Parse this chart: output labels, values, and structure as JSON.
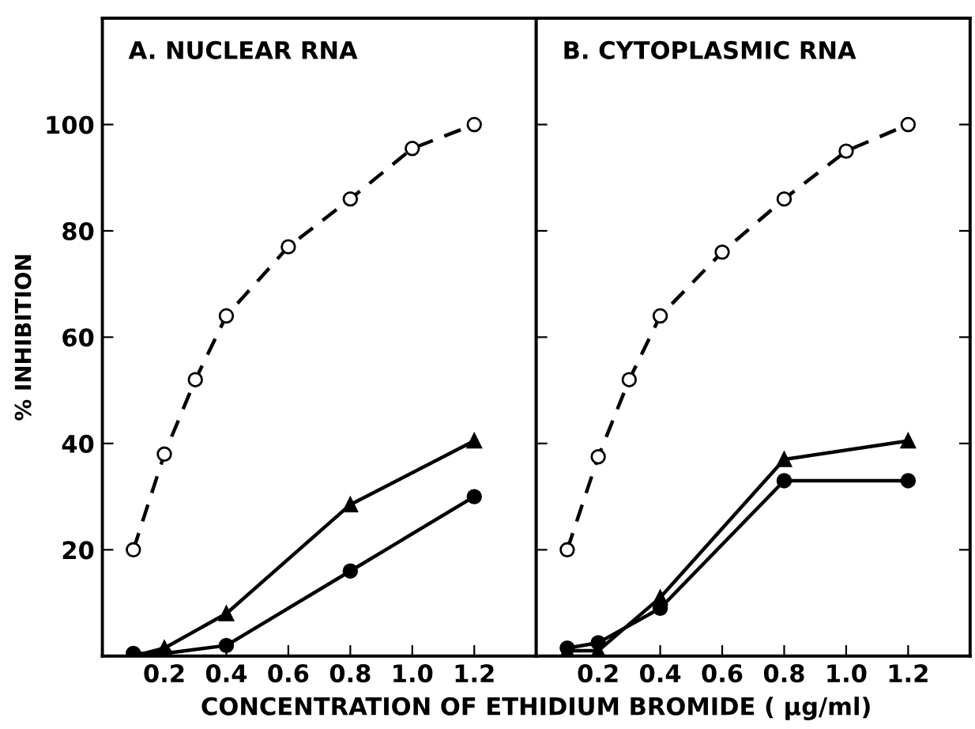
{
  "chart_data": [
    {
      "type": "line",
      "title": "A. NUCLEAR RNA",
      "ylabel": "% INHIBITION",
      "xlabel": "CONCENTRATION OF ETHIDIUM BROMIDE ( μg/ml)",
      "xlim": [
        0,
        1.4
      ],
      "ylim": [
        0,
        120
      ],
      "xticks": [
        0.2,
        0.4,
        0.6,
        0.8,
        {
          "value": 1.0,
          "label": "1.0"
        },
        1.2
      ],
      "yticks": [
        20,
        40,
        60,
        80,
        100
      ],
      "grid": false,
      "legend": false,
      "series": [
        {
          "color": "#000000",
          "marker": "circle",
          "line_style": "dashed",
          "x": [
            0.1,
            0.2,
            0.3,
            0.4,
            0.6,
            0.8,
            1.0,
            1.2
          ],
          "values": [
            20,
            38,
            52,
            64,
            77,
            86,
            95.5,
            100
          ]
        },
        {
          "color": "#000000",
          "marker": "triangle",
          "line_style": "solid",
          "x": [
            0.1,
            0.2,
            0.4,
            0.8,
            1.2
          ],
          "values": [
            0,
            1.5,
            8,
            28.5,
            40.5
          ]
        },
        {
          "color": "#000000",
          "marker": "circle",
          "line_style": "solid",
          "x": [
            0.1,
            0.2,
            0.4,
            0.8,
            1.2
          ],
          "values": [
            0.5,
            0.5,
            2,
            16,
            30
          ]
        }
      ]
    },
    {
      "type": "line",
      "title": "B. CYTOPLASMIC RNA",
      "xlim": [
        0,
        1.4
      ],
      "ylim": [
        0,
        120
      ],
      "xticks": [
        0.2,
        0.4,
        0.6,
        0.8,
        {
          "value": 1.0,
          "label": "1.0"
        },
        1.2
      ],
      "yticks": [
        20,
        40,
        60,
        80,
        100
      ],
      "tick_labels": "x",
      "grid": false,
      "legend": false,
      "series": [
        {
          "color": "#000000",
          "marker": "circle",
          "line_style": "dashed",
          "x": [
            0.1,
            0.2,
            0.3,
            0.4,
            0.6,
            0.8,
            1.0,
            1.2
          ],
          "values": [
            20,
            37.5,
            52,
            64,
            76,
            86,
            95,
            100
          ]
        },
        {
          "color": "#000000",
          "marker": "triangle",
          "line_style": "solid",
          "x": [
            0.1,
            0.2,
            0.4,
            0.8,
            1.2
          ],
          "values": [
            1,
            1,
            11,
            37,
            40.5
          ]
        },
        {
          "color": "#000000",
          "marker": "circle",
          "line_style": "solid",
          "x": [
            0.1,
            0.2,
            0.4,
            0.8,
            1.2
          ],
          "values": [
            1.5,
            2.5,
            9,
            33,
            33
          ]
        }
      ]
    }
  ]
}
